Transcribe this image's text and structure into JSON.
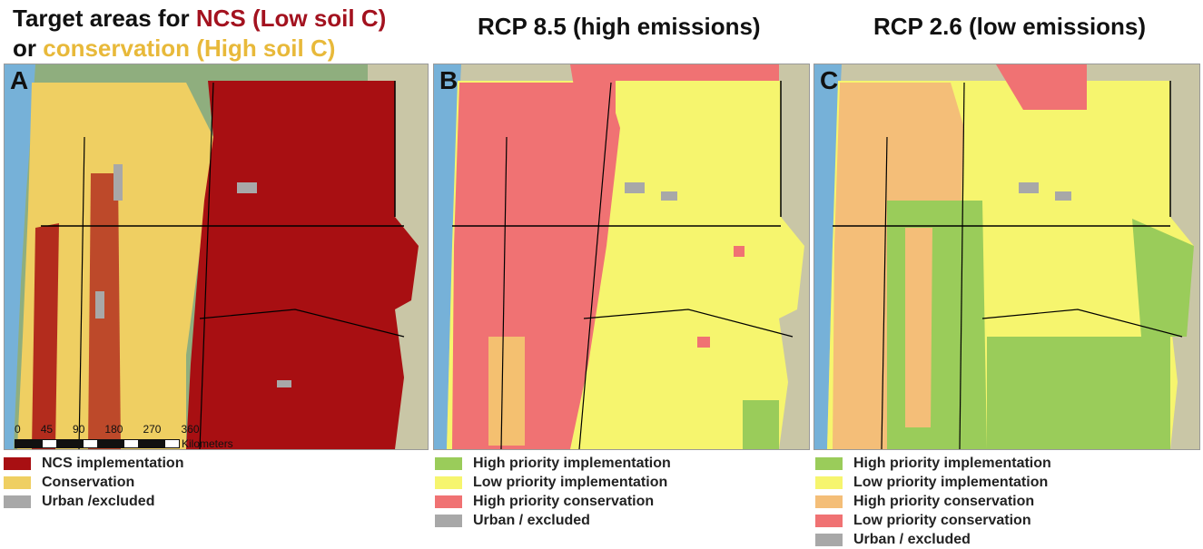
{
  "titles": {
    "a_prefix": "Target areas for ",
    "a_ncs": "NCS (Low soil C)",
    "a_or": " or ",
    "a_cons": "conservation (High soil C)",
    "b": "RCP 8.5 (high emissions)",
    "c": "RCP 2.6 (low emissions)"
  },
  "panels": {
    "a": "A",
    "b": "B",
    "c": "C"
  },
  "scale_bar": {
    "ticks": [
      "0",
      "45",
      "90",
      "180",
      "270",
      "360"
    ],
    "unit": "Kilometers"
  },
  "legend_a": [
    {
      "label": "NCS implementation",
      "color": "#a80f12"
    },
    {
      "label": "Conservation",
      "color": "#efcf62"
    },
    {
      "label": "Urban /excluded",
      "color": "#a8a8a8"
    }
  ],
  "legend_b": [
    {
      "label": "High priority implementation",
      "color": "#9acc5a"
    },
    {
      "label": "Low priority implementation",
      "color": "#f6f56e"
    },
    {
      "label": "High priority conservation",
      "color": "#f07273"
    },
    {
      "label": "Urban / excluded",
      "color": "#a8a8a8"
    }
  ],
  "legend_c": [
    {
      "label": "High priority implementation",
      "color": "#9acc5a"
    },
    {
      "label": "Low priority implementation",
      "color": "#f6f56e"
    },
    {
      "label": "High priority conservation",
      "color": "#f4be78"
    },
    {
      "label": "Low priority conservation",
      "color": "#f07273"
    },
    {
      "label": "Urban / excluded",
      "color": "#a8a8a8"
    }
  ],
  "colors": {
    "ocean": "#76b1d8",
    "land": "#c9c6a6",
    "forest": "#8fae7e"
  }
}
